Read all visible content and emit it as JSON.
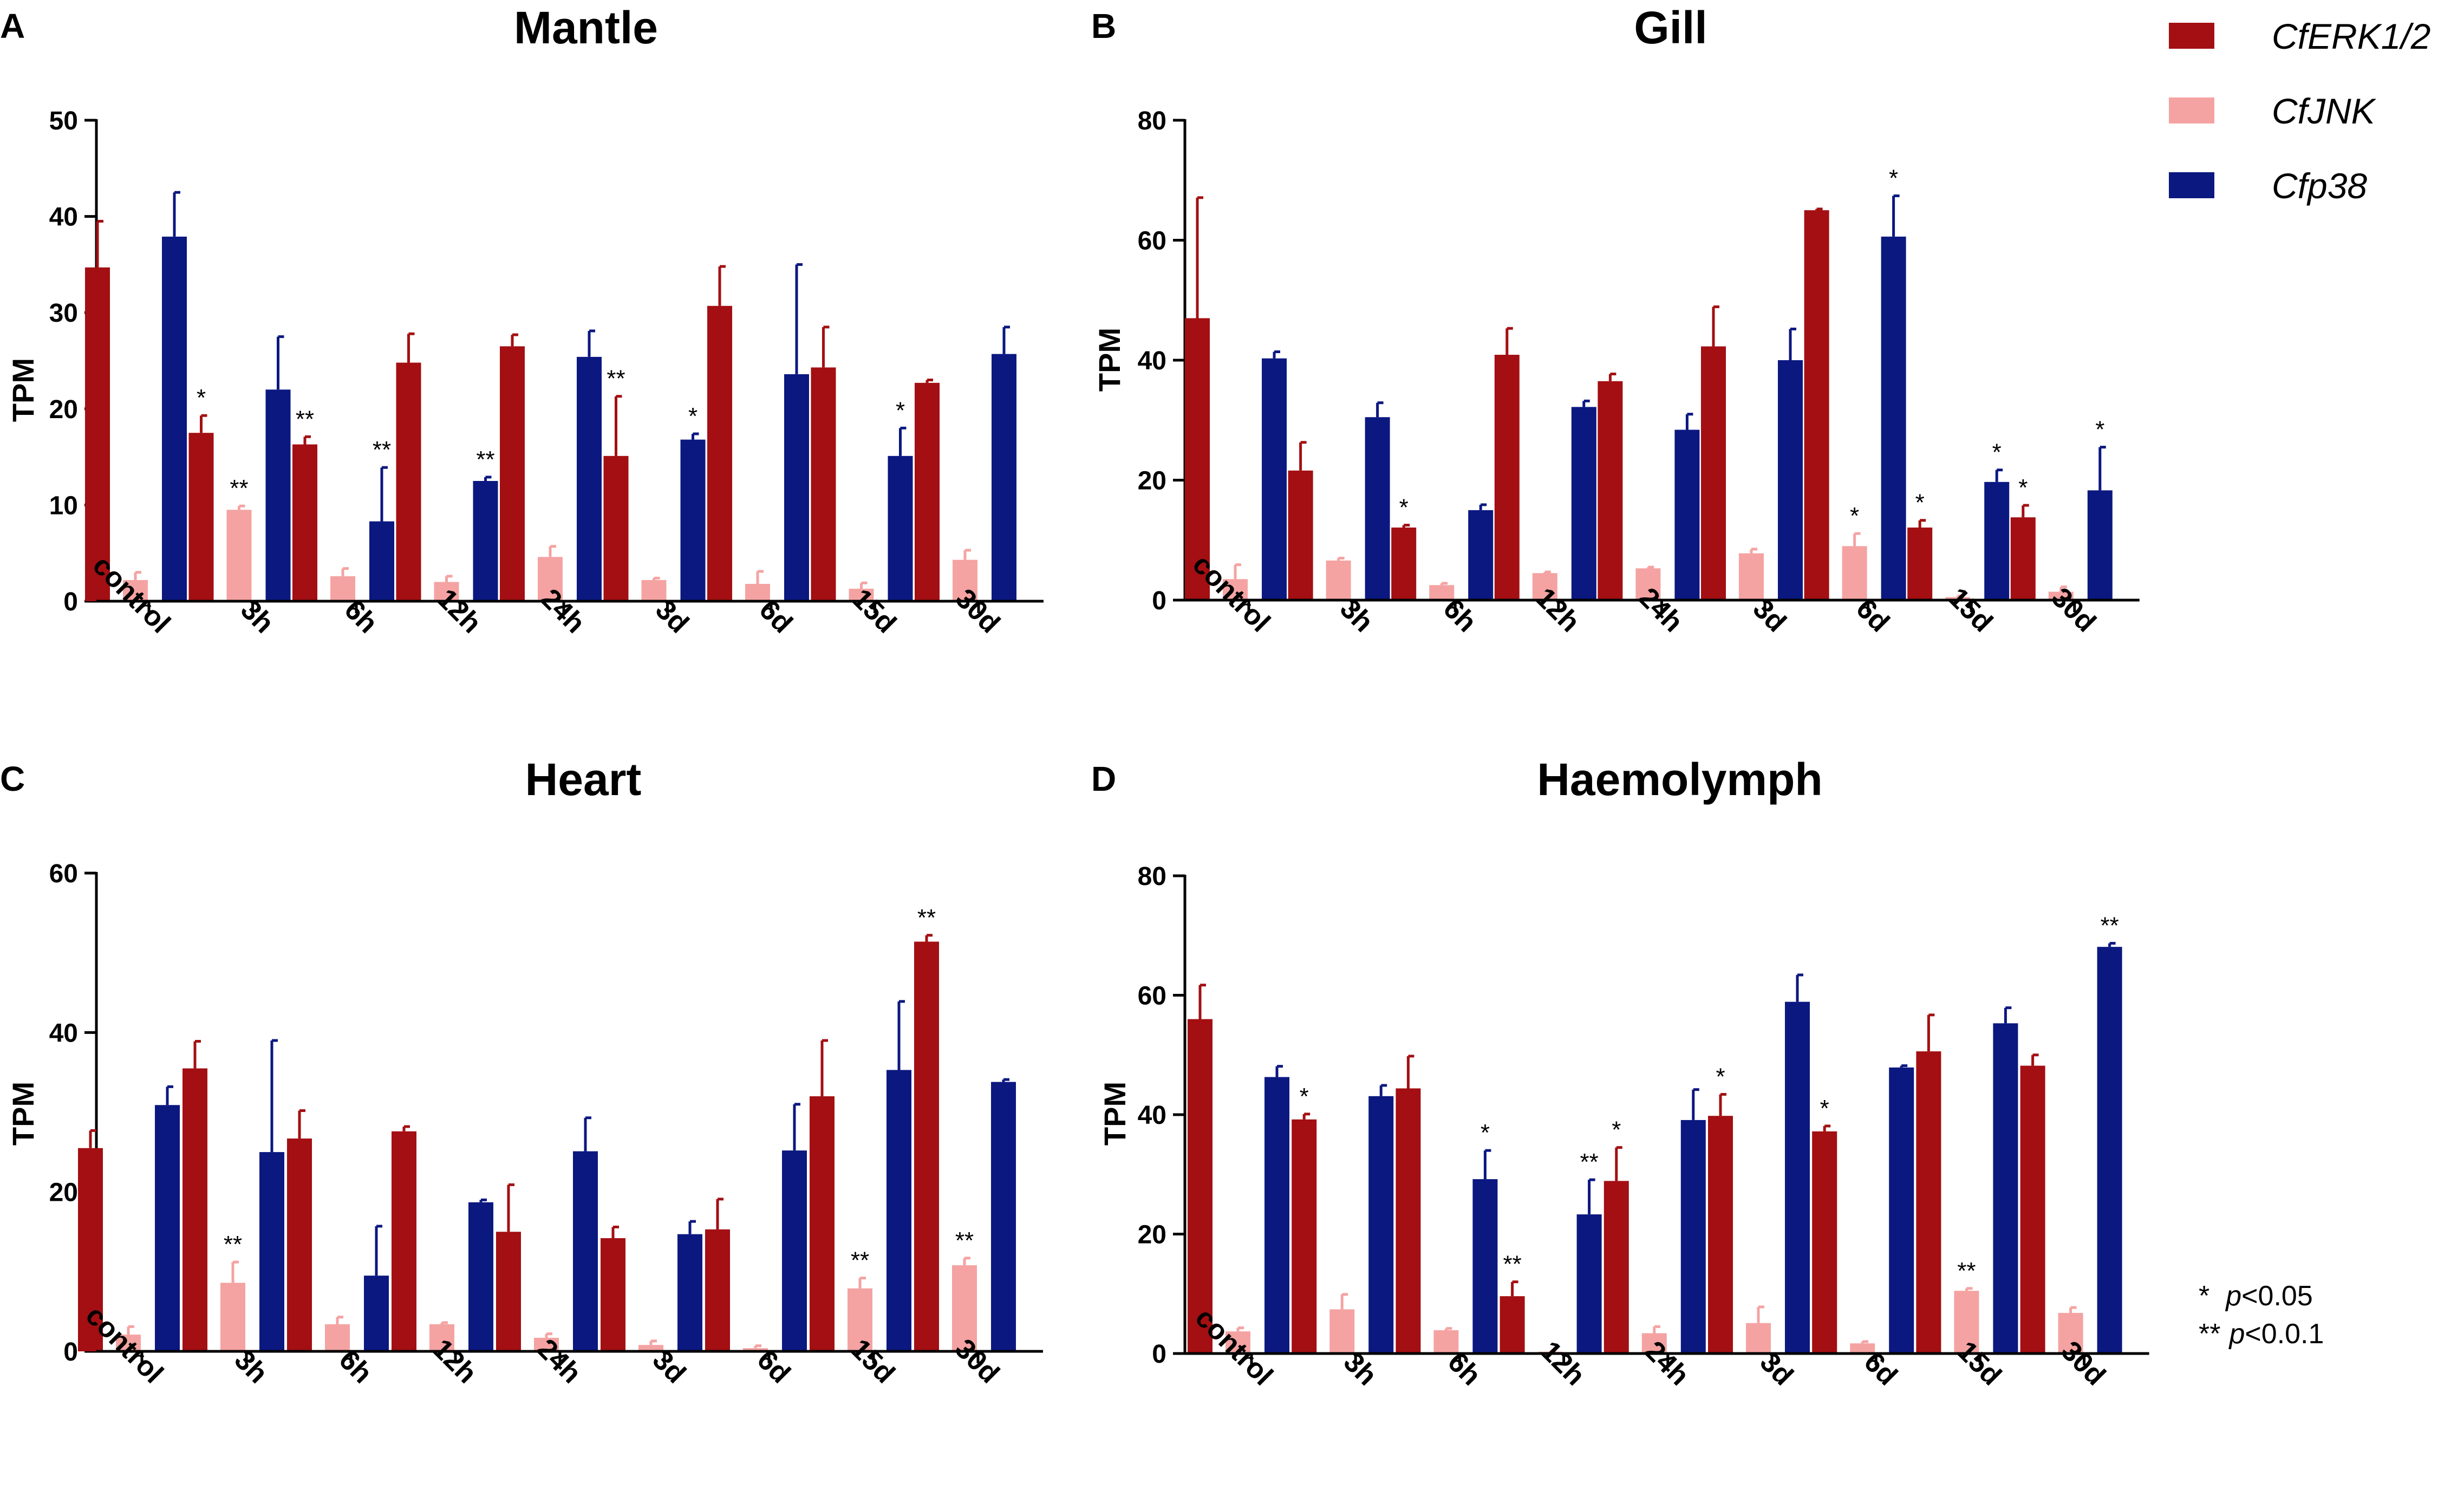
{
  "legend": {
    "series_names": [
      "CfERK1/2",
      "CfJNK",
      "Cfp38"
    ],
    "colors": [
      "#a30f12",
      "#f4a3a2",
      "#0b1880"
    ]
  },
  "footnote": {
    "single_star": "*",
    "single_p": "p",
    "single_rest": "<0.05",
    "double_star": "**",
    "double_p": "p",
    "double_rest": "<0.0.1"
  },
  "chart_data": [
    {
      "type": "bar",
      "panel": "A",
      "title": "Mantle",
      "ylabel": "TPM",
      "ylim": [
        0,
        50
      ],
      "yticks": [
        0,
        10,
        20,
        30,
        40,
        50
      ],
      "categories": [
        "control",
        "3h",
        "6h",
        "12h",
        "24h",
        "3d",
        "6d",
        "15d",
        "30d"
      ],
      "series": [
        {
          "name": "CfERK1/2",
          "values": [
            34.7,
            17.5,
            16.3,
            24.8,
            26.5,
            15.1,
            30.7,
            24.3,
            22.7
          ],
          "errors": [
            4.8,
            1.8,
            0.8,
            3.0,
            1.2,
            6.2,
            4.1,
            4.2,
            0.3
          ],
          "sig": [
            "",
            "*",
            "**",
            "",
            "",
            "**",
            "",
            "",
            ""
          ]
        },
        {
          "name": "CfJNK",
          "values": [
            2.2,
            9.5,
            2.6,
            2.0,
            4.6,
            2.2,
            1.8,
            1.3,
            4.3
          ],
          "errors": [
            0.8,
            0.4,
            0.8,
            0.6,
            1.1,
            0.2,
            1.3,
            0.6,
            1.0
          ],
          "sig": [
            "",
            "**",
            "",
            "",
            "",
            "",
            "",
            "",
            ""
          ]
        },
        {
          "name": "Cfp38",
          "values": [
            37.9,
            22.0,
            8.3,
            12.5,
            25.4,
            16.8,
            23.6,
            15.1,
            25.7
          ],
          "errors": [
            4.6,
            5.5,
            5.6,
            0.4,
            2.7,
            0.6,
            11.4,
            2.9,
            2.8
          ],
          "sig": [
            "",
            "",
            "**",
            "**",
            "",
            "*",
            "",
            "*",
            ""
          ]
        }
      ]
    },
    {
      "type": "bar",
      "panel": "B",
      "title": "Gill",
      "ylabel": "TPM",
      "ylim": [
        0,
        80
      ],
      "yticks": [
        0,
        20,
        40,
        60,
        80
      ],
      "categories": [
        "control",
        "3h",
        "6h",
        "12h",
        "24h",
        "3d",
        "6d",
        "15d",
        "30d"
      ],
      "series": [
        {
          "name": "CfERK1/2",
          "values": [
            47.0,
            21.6,
            12.1,
            40.9,
            36.5,
            42.3,
            65.0,
            12.1,
            13.8
          ],
          "errors": [
            20.1,
            4.7,
            0.4,
            4.4,
            1.2,
            6.6,
            0.2,
            1.2,
            2.0
          ],
          "sig": [
            "",
            "",
            "*",
            "",
            "",
            "",
            "",
            "*",
            "*"
          ]
        },
        {
          "name": "CfJNK",
          "values": [
            3.5,
            6.6,
            2.5,
            4.5,
            5.3,
            7.8,
            9.0,
            0.5,
            1.4
          ],
          "errors": [
            2.4,
            0.4,
            0.3,
            0.2,
            0.2,
            0.7,
            2.1,
            0.2,
            0.8
          ],
          "sig": [
            "",
            "",
            "",
            "",
            "",
            "",
            "*",
            "",
            ""
          ]
        },
        {
          "name": "Cfp38",
          "values": [
            40.3,
            30.5,
            15.0,
            32.2,
            28.4,
            40.0,
            60.6,
            19.7,
            18.3
          ],
          "errors": [
            1.1,
            2.4,
            0.9,
            1.0,
            2.6,
            5.2,
            6.8,
            2.0,
            7.2
          ],
          "sig": [
            "",
            "",
            "",
            "",
            "",
            "",
            "*",
            "*",
            "*"
          ]
        }
      ]
    },
    {
      "type": "bar",
      "panel": "C",
      "title": "Heart",
      "ylabel": "TPM",
      "ylim": [
        0,
        60
      ],
      "yticks": [
        0,
        20,
        40,
        60
      ],
      "categories": [
        "control",
        "3h",
        "6h",
        "12h",
        "24h",
        "3d",
        "6d",
        "15d",
        "30d"
      ],
      "series": [
        {
          "name": "CfERK1/2",
          "values": [
            25.5,
            35.5,
            26.7,
            27.6,
            15.0,
            14.2,
            15.3,
            32.0,
            51.4
          ],
          "errors": [
            2.2,
            3.4,
            3.5,
            0.6,
            5.9,
            1.4,
            3.8,
            7.0,
            0.8
          ],
          "sig": [
            "",
            "",
            "",
            "",
            "",
            "",
            "",
            "",
            "**"
          ]
        },
        {
          "name": "CfJNK",
          "values": [
            2.1,
            8.6,
            3.4,
            3.4,
            1.7,
            0.8,
            0.4,
            7.9,
            10.8
          ],
          "errors": [
            1.0,
            2.6,
            0.9,
            0.2,
            0.5,
            0.5,
            0.3,
            1.3,
            0.9
          ],
          "sig": [
            "",
            "**",
            "",
            "",
            "",
            "",
            "",
            "**",
            "**"
          ]
        },
        {
          "name": "Cfp38",
          "values": [
            30.9,
            25.0,
            9.5,
            18.7,
            25.1,
            14.7,
            25.2,
            35.3,
            33.8
          ],
          "errors": [
            2.3,
            14.0,
            6.2,
            0.3,
            4.2,
            1.6,
            5.8,
            8.6,
            0.3
          ],
          "sig": [
            "",
            "",
            "",
            "",
            "",
            "",
            "",
            "",
            ""
          ]
        }
      ]
    },
    {
      "type": "bar",
      "panel": "D",
      "title": "Haemolymph",
      "ylabel": "TPM",
      "ylim": [
        0,
        80
      ],
      "yticks": [
        0,
        20,
        40,
        60,
        80
      ],
      "categories": [
        "control",
        "3h",
        "6h",
        "12h",
        "24h",
        "3d",
        "6d",
        "15d",
        "30d"
      ],
      "series": [
        {
          "name": "CfERK1/2",
          "values": [
            56.0,
            39.2,
            44.4,
            9.6,
            28.9,
            39.8,
            37.2,
            50.6,
            48.2
          ],
          "errors": [
            5.7,
            0.9,
            5.4,
            2.4,
            5.6,
            3.6,
            0.9,
            6.1,
            1.8
          ],
          "sig": [
            "",
            "*",
            "",
            "**",
            "*",
            "*",
            "*",
            "",
            ""
          ]
        },
        {
          "name": "CfJNK",
          "values": [
            3.7,
            7.4,
            3.9,
            0.3,
            3.4,
            5.1,
            1.7,
            10.5,
            6.8
          ],
          "errors": [
            0.6,
            2.5,
            0.3,
            0.1,
            1.1,
            2.7,
            0.3,
            0.4,
            0.9
          ],
          "sig": [
            "",
            "",
            "",
            "",
            "",
            "",
            "",
            "**",
            ""
          ]
        },
        {
          "name": "Cfp38",
          "values": [
            46.3,
            43.1,
            29.2,
            23.3,
            39.1,
            58.9,
            47.9,
            55.3,
            68.1
          ],
          "errors": [
            1.8,
            1.8,
            4.8,
            5.8,
            5.1,
            4.5,
            0.3,
            2.6,
            0.6
          ],
          "sig": [
            "",
            "",
            "*",
            "**",
            "",
            "",
            "",
            "",
            "**"
          ]
        }
      ]
    }
  ]
}
